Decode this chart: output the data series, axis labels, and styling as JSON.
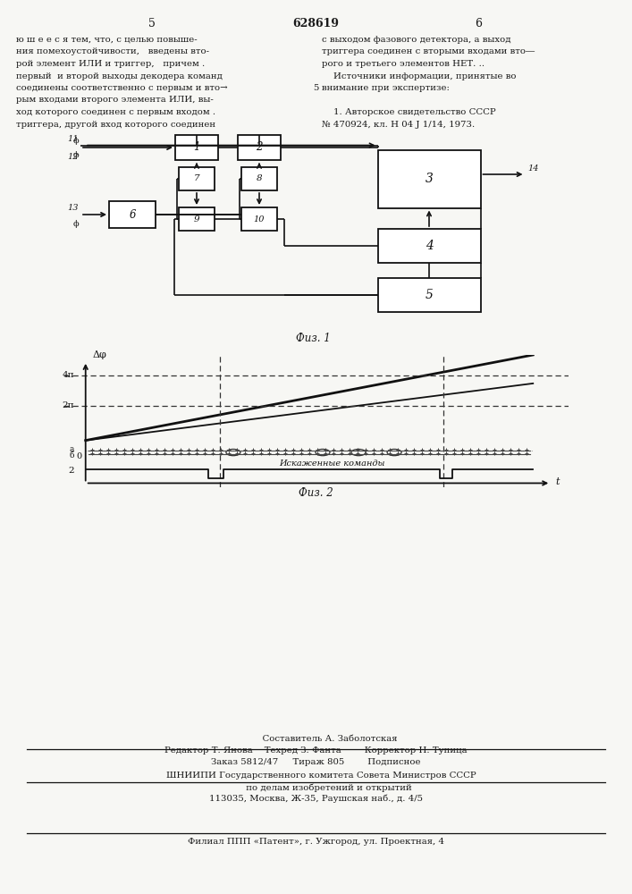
{
  "page_number_center": "628619",
  "page_number_left": "5",
  "page_number_right": "6",
  "bg_color": "#f7f7f4",
  "text_color": "#1a1a1a",
  "left_column_lines": [
    "ю ш е е с я тем, что, с целью повыше-",
    "ния помехоустойчивости,   введены вто-",
    "рой элемент ИЛИ и триггер,   причем .",
    "первый  и второй выходы декодера команд",
    "соединены соответственно с первым и вто→",
    "рым входами второго элемента ИЛИ, вы-",
    "ход которого соединен с первым входом .",
    "триггера, другой вход которого соединен"
  ],
  "right_column_lines": [
    "с выходом фазового детектора, а выход",
    "триггера соединен с вторыми входами вто―",
    "рого и третьего элементов НЕТ. ..",
    "    Источники информации, принятые во",
    "внимание при экспертизе:",
    "",
    "    1. Авторское свидетельство СССР",
    "№ 470924, кл. Н 04 J 1/14, 1973."
  ],
  "fig1_label": "Фuз. 1",
  "fig2_label": "Фuз. 2",
  "bottom_line1": "          Составитель А. Заболотская",
  "bottom_line2": "Редактор Т. Янова    Техред З. Фанта        Корректор Н. Тупица",
  "bottom_line3": "Заказ 5812/47     Тираж 805        Подписное",
  "bottom_line4": "    ШНИИПИ Государственного комитета Совета Министров СССР",
  "bottom_line5": "         по делам изобретений и открытий",
  "bottom_line6": "113035, Москва, Ж-35, Раушская наб., д. 4/5",
  "bottom_line7": "Филиал ППП «Патент», г. Ужгород, ул. Проектная, 4",
  "fig1_blocks": {
    "b1": [
      220,
      835,
      48,
      28
    ],
    "b2": [
      290,
      835,
      48,
      28
    ],
    "b3": [
      480,
      800,
      115,
      65
    ],
    "b4": [
      480,
      725,
      115,
      38
    ],
    "b5": [
      480,
      670,
      115,
      38
    ],
    "b6": [
      148,
      760,
      52,
      30
    ],
    "b7": [
      220,
      800,
      40,
      26
    ],
    "b8": [
      290,
      800,
      40,
      26
    ],
    "b9": [
      220,
      755,
      40,
      26
    ],
    "b10": [
      290,
      755,
      40,
      26
    ]
  }
}
